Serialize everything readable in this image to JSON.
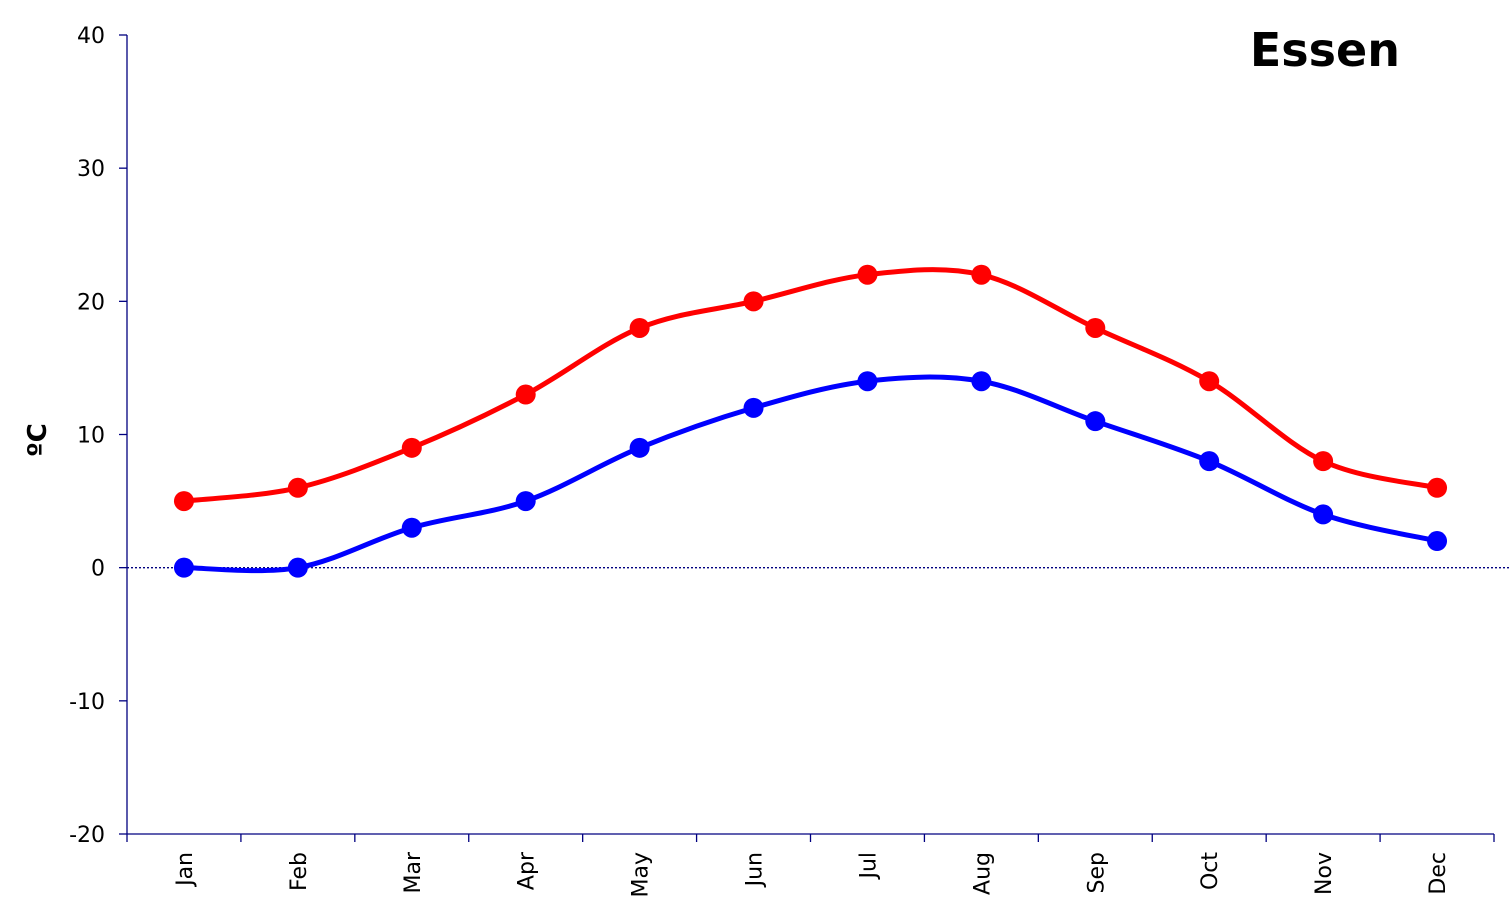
{
  "chart_data": {
    "type": "line",
    "title": "Essen",
    "xlabel": "",
    "ylabel": "ºC",
    "categories": [
      "Jan",
      "Feb",
      "Mar",
      "Apr",
      "May",
      "Jun",
      "Jul",
      "Aug",
      "Sep",
      "Oct",
      "Nov",
      "Dec"
    ],
    "series": [
      {
        "values": [
          5,
          6,
          9,
          13,
          18,
          20,
          22,
          22,
          18,
          14,
          8,
          6
        ],
        "color": "#ff0000"
      },
      {
        "values": [
          0,
          0,
          3,
          5,
          9,
          12,
          14,
          14,
          11,
          8,
          4,
          2
        ],
        "color": "#0000ff"
      }
    ],
    "ylim": [
      -20,
      40
    ],
    "yticks": [
      40,
      30,
      20,
      10,
      0,
      -10,
      -20
    ],
    "grid": false,
    "smooth": true,
    "zero_line": true,
    "axis_color": "#000080"
  }
}
